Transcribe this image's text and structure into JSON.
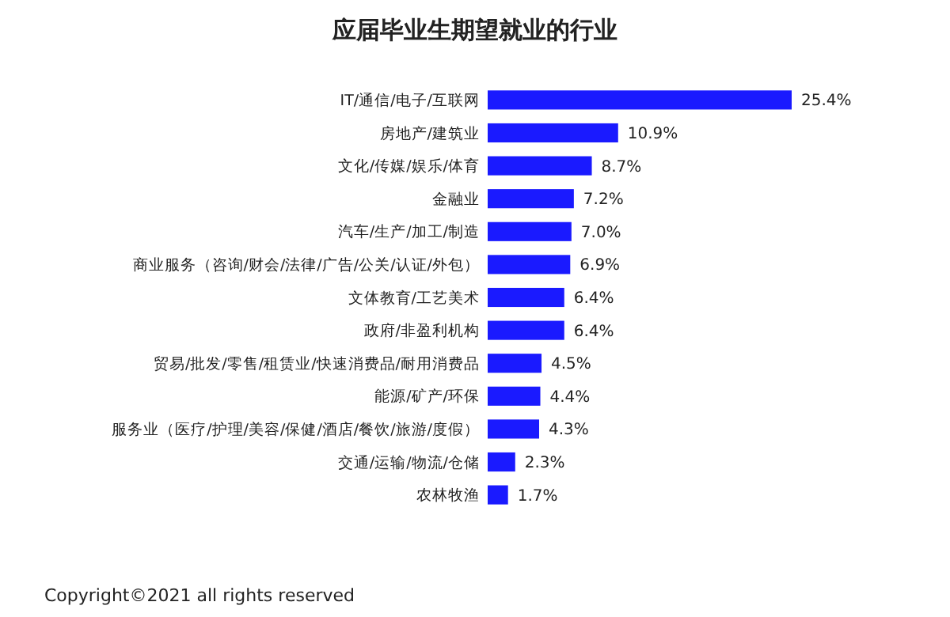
{
  "chart_data": {
    "type": "bar",
    "orientation": "horizontal",
    "title": "应届毕业生期望就业的行业",
    "categories": [
      "IT/通信/电子/互联网",
      "房地产/建筑业",
      "文化/传媒/娱乐/体育",
      "金融业",
      "汽车/生产/加工/制造",
      "商业服务（咨询/财会/法律/广告/公关/认证/外包）",
      "文体教育/工艺美术",
      "政府/非盈利机构",
      "贸易/批发/零售/租赁业/快速消费品/耐用消费品",
      "能源/矿产/环保",
      "服务业（医疗/护理/美容/保健/酒店/餐饮/旅游/度假）",
      "交通/运输/物流/仓储",
      "农林牧渔"
    ],
    "values": [
      25.4,
      10.9,
      8.7,
      7.2,
      7.0,
      6.9,
      6.4,
      6.4,
      4.5,
      4.4,
      4.3,
      2.3,
      1.7
    ],
    "value_labels": [
      "25.4%",
      "10.9%",
      "8.7%",
      "7.2%",
      "7.0%",
      "6.9%",
      "6.4%",
      "6.4%",
      "4.5%",
      "4.4%",
      "4.3%",
      "2.3%",
      "1.7%"
    ],
    "color": "#1a1aff",
    "annotations": [
      "Copyright©2021 all rights reserved"
    ]
  }
}
